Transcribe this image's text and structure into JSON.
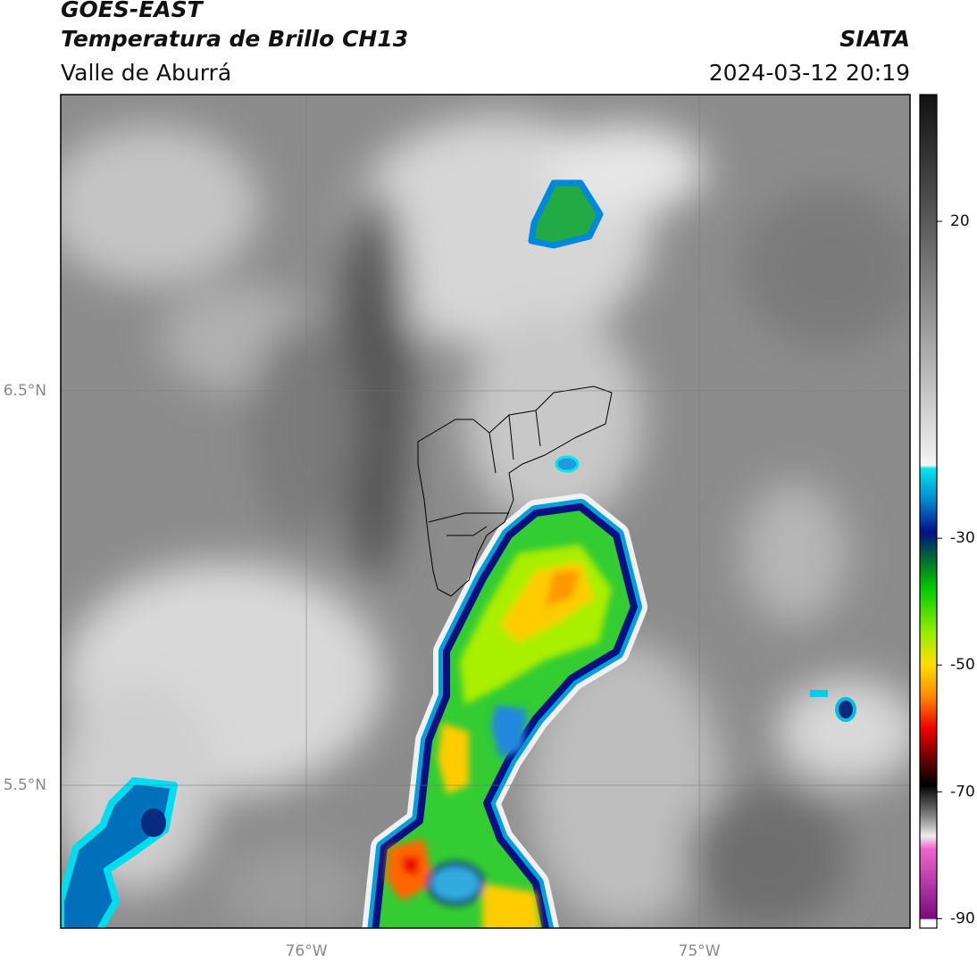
{
  "header": {
    "title": "GOES-EAST",
    "subtitle": "Temperatura de Brillo CH13",
    "region": "Valle de Aburrá",
    "source": "SIATA",
    "datetime": "2024-03-12 20:19"
  },
  "map": {
    "xlim": [
      -76.625,
      -74.464
    ],
    "ylim": [
      5.138,
      7.251
    ],
    "xticks": [
      {
        "value": -76,
        "label": "76°W"
      },
      {
        "value": -75,
        "label": "75°W"
      }
    ],
    "yticks": [
      {
        "value": 6.5,
        "label": "6.5°N"
      },
      {
        "value": 5.5,
        "label": "5.5°N"
      }
    ],
    "grid": true
  },
  "colorbar": {
    "lim": [
      -91.5,
      40
    ],
    "ticks": [
      20,
      -30,
      -50,
      -70,
      -90
    ],
    "colormap": [
      {
        "value": 40,
        "color": "#111111"
      },
      {
        "value": 20,
        "color": "#5a5a5a"
      },
      {
        "value": 0,
        "color": "#a8a8a8"
      },
      {
        "value": -18.5,
        "color": "#f4f4f4"
      },
      {
        "value": -19,
        "color": "#00e5ee"
      },
      {
        "value": -24,
        "color": "#0088cc"
      },
      {
        "value": -29,
        "color": "#00108a"
      },
      {
        "value": -33,
        "color": "#006633"
      },
      {
        "value": -38,
        "color": "#00cc00"
      },
      {
        "value": -45,
        "color": "#99ee00"
      },
      {
        "value": -50,
        "color": "#ffdd00"
      },
      {
        "value": -55,
        "color": "#ff8800"
      },
      {
        "value": -60,
        "color": "#ee0000"
      },
      {
        "value": -65,
        "color": "#660000"
      },
      {
        "value": -69,
        "color": "#000000"
      },
      {
        "value": -74,
        "color": "#888888"
      },
      {
        "value": -77,
        "color": "#eeeeee"
      },
      {
        "value": -79,
        "color": "#ee66cc"
      },
      {
        "value": -90,
        "color": "#7a0a80"
      },
      {
        "value": -90.2,
        "color": "#ffffff"
      }
    ]
  }
}
